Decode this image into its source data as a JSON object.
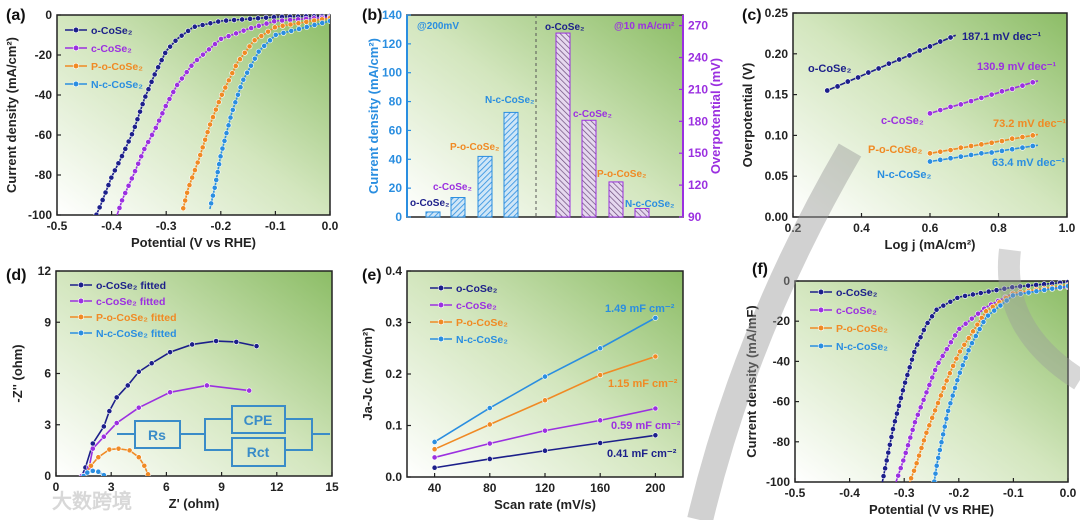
{
  "colors": {
    "o": "#1c1f8a",
    "c": "#9b30e0",
    "P": "#f08a24",
    "N": "#2a8ee0",
    "circuit": "#3a8cc8"
  },
  "watermark": "大数跨境",
  "chart_data": [
    {
      "panel": "(a)",
      "type": "line",
      "xlabel": "Potential (V vs RHE)",
      "ylabel": "Current density (mA/cm²)",
      "xlim": [
        -0.5,
        0
      ],
      "ylim": [
        -100,
        0
      ],
      "xticks": [
        -0.5,
        -0.4,
        -0.3,
        -0.2,
        -0.1,
        0
      ],
      "xtick_labels": [
        "-0.5",
        "-0.4",
        "-0.3",
        "-0.2",
        "-0.1",
        "0.0"
      ],
      "yticks": [
        -100,
        -80,
        -60,
        -40,
        -20,
        0
      ],
      "ytick_labels": [
        "-100",
        "-80",
        "-60",
        "-40",
        "-20",
        "0"
      ],
      "legend": "top-left",
      "series": [
        {
          "name": "o-CoSe₂",
          "key": "o",
          "points": [
            [
              0,
              -0.5
            ],
            [
              -0.1,
              -1
            ],
            [
              -0.2,
              -3
            ],
            [
              -0.25,
              -6
            ],
            [
              -0.28,
              -12
            ],
            [
              -0.3,
              -18
            ],
            [
              -0.32,
              -29
            ],
            [
              -0.34,
              -42
            ],
            [
              -0.36,
              -58
            ],
            [
              -0.38,
              -70
            ],
            [
              -0.4,
              -81
            ],
            [
              -0.42,
              -95
            ],
            [
              -0.428,
              -100
            ]
          ]
        },
        {
          "name": "c-CoSe₂",
          "key": "c",
          "points": [
            [
              0,
              -1
            ],
            [
              -0.1,
              -3
            ],
            [
              -0.15,
              -7
            ],
            [
              -0.2,
              -12
            ],
            [
              -0.25,
              -24
            ],
            [
              -0.28,
              -35
            ],
            [
              -0.3,
              -45
            ],
            [
              -0.32,
              -57
            ],
            [
              -0.34,
              -67
            ],
            [
              -0.36,
              -80
            ],
            [
              -0.38,
              -92
            ],
            [
              -0.39,
              -100
            ]
          ]
        },
        {
          "name": "P-o-CoSe₂",
          "key": "P",
          "points": [
            [
              0,
              -1.5
            ],
            [
              -0.1,
              -6
            ],
            [
              -0.14,
              -13
            ],
            [
              -0.17,
              -24
            ],
            [
              -0.2,
              -41
            ],
            [
              -0.22,
              -55
            ],
            [
              -0.24,
              -72
            ],
            [
              -0.26,
              -87
            ],
            [
              -0.27,
              -98
            ]
          ]
        },
        {
          "name": "N-c-CoSe₂",
          "key": "N",
          "points": [
            [
              0,
              -3
            ],
            [
              -0.1,
              -10
            ],
            [
              -0.13,
              -18
            ],
            [
              -0.16,
              -33
            ],
            [
              -0.18,
              -49
            ],
            [
              -0.2,
              -70
            ],
            [
              -0.21,
              -85
            ],
            [
              -0.22,
              -97
            ]
          ]
        }
      ]
    },
    {
      "panel": "(b)",
      "type": "bar",
      "left": {
        "annotation": "@200mV",
        "ylabel": "Current density (mA/cm²)",
        "ylim": [
          0,
          140
        ],
        "yticks": [
          0,
          20,
          40,
          60,
          80,
          100,
          120,
          140
        ],
        "ytick_labels": [
          "0",
          "20",
          "40",
          "60",
          "80",
          "100",
          "120",
          "140"
        ],
        "categories": [
          "o-CoSe₂",
          "c-CoSe₂",
          "P-o-CoSe₂",
          "N-c-CoSe₂"
        ],
        "keys": [
          "o",
          "c",
          "P",
          "N"
        ],
        "values": [
          3.5,
          13.5,
          42,
          72.5
        ]
      },
      "right": {
        "annotation": "@10 mA/cm²",
        "ylabel": "Overpotential (mV)",
        "ylim": [
          90,
          280
        ],
        "yticks": [
          90,
          120,
          150,
          180,
          210,
          240,
          270
        ],
        "ytick_labels": [
          "90",
          "120",
          "150",
          "180",
          "210",
          "240",
          "270"
        ],
        "categories": [
          "o-CoSe₂",
          "c-CoSe₂",
          "P-o-CoSe₂",
          "N-c-CoSe₂"
        ],
        "keys": [
          "o",
          "c",
          "P",
          "N"
        ],
        "values": [
          263,
          181,
          123,
          98
        ]
      }
    },
    {
      "panel": "(c)",
      "type": "scatter",
      "xlabel": "Log j (mA/cm²)",
      "ylabel": "Overpotential (V)",
      "xlim": [
        0.2,
        1.0
      ],
      "ylim": [
        0,
        0.25
      ],
      "xticks": [
        0.2,
        0.4,
        0.6,
        0.8,
        1.0
      ],
      "xtick_labels": [
        "0.2",
        "0.4",
        "0.6",
        "0.8",
        "1.0"
      ],
      "yticks": [
        0,
        0.05,
        0.1,
        0.15,
        0.2,
        0.25
      ],
      "ytick_labels": [
        "0.00",
        "0.05",
        "0.10",
        "0.15",
        "0.20",
        "0.25"
      ],
      "series": [
        {
          "name": "o-CoSe₂",
          "key": "o",
          "slope": "187.1 mV dec⁻¹",
          "x": [
            0.3,
            0.33,
            0.36,
            0.39,
            0.42,
            0.45,
            0.48,
            0.51,
            0.54,
            0.57,
            0.6,
            0.63,
            0.66
          ],
          "y": [
            0.155,
            0.16,
            0.166,
            0.171,
            0.177,
            0.182,
            0.188,
            0.193,
            0.198,
            0.204,
            0.209,
            0.215,
            0.22
          ]
        },
        {
          "name": "c-CoSe₂",
          "key": "c",
          "slope": "130.9 mV dec⁻¹",
          "x": [
            0.6,
            0.63,
            0.66,
            0.69,
            0.72,
            0.75,
            0.78,
            0.81,
            0.84,
            0.87,
            0.9
          ],
          "y": [
            0.127,
            0.131,
            0.135,
            0.138,
            0.142,
            0.146,
            0.15,
            0.154,
            0.157,
            0.161,
            0.165
          ]
        },
        {
          "name": "P-o-CoSe₂",
          "key": "P",
          "slope": "73.2 mV dec⁻¹",
          "x": [
            0.6,
            0.63,
            0.66,
            0.69,
            0.72,
            0.75,
            0.78,
            0.81,
            0.84,
            0.87,
            0.9
          ],
          "y": [
            0.078,
            0.08,
            0.082,
            0.085,
            0.087,
            0.089,
            0.091,
            0.093,
            0.096,
            0.098,
            0.1
          ]
        },
        {
          "name": "N-c-CoSe₂",
          "key": "N",
          "slope": "63.4 mV dec⁻¹",
          "x": [
            0.6,
            0.63,
            0.66,
            0.69,
            0.72,
            0.75,
            0.78,
            0.81,
            0.84,
            0.87,
            0.9
          ],
          "y": [
            0.068,
            0.07,
            0.072,
            0.074,
            0.076,
            0.078,
            0.079,
            0.081,
            0.083,
            0.085,
            0.087
          ]
        }
      ]
    },
    {
      "panel": "(d)",
      "type": "scatter",
      "xlabel": "Z' (ohm)",
      "ylabel": "-Z'' (ohm)",
      "xlim": [
        0,
        15
      ],
      "ylim": [
        0,
        12
      ],
      "xticks": [
        0,
        3,
        6,
        9,
        12,
        15
      ],
      "xtick_labels": [
        "0",
        "3",
        "6",
        "9",
        "12",
        "15"
      ],
      "yticks": [
        0,
        3,
        6,
        9,
        12
      ],
      "ytick_labels": [
        "0",
        "3",
        "6",
        "9",
        "12"
      ],
      "legend": "top-left",
      "circuit": {
        "rs": "Rs",
        "cpe": "CPE",
        "rct": "Rct"
      },
      "series": [
        {
          "name": "o-CoSe₂ fitted",
          "key": "o",
          "points": [
            [
              1.4,
              0
            ],
            [
              1.6,
              0.5
            ],
            [
              2,
              1.9
            ],
            [
              2.6,
              2.9
            ],
            [
              2.9,
              3.8
            ],
            [
              3.3,
              4.6
            ],
            [
              3.9,
              5.3
            ],
            [
              4.5,
              6.1
            ],
            [
              5.2,
              6.6
            ],
            [
              6.2,
              7.25
            ],
            [
              7.4,
              7.7
            ],
            [
              8.7,
              7.9
            ],
            [
              9.8,
              7.85
            ],
            [
              10.9,
              7.6
            ]
          ]
        },
        {
          "name": "c-CoSe₂ fitted",
          "key": "c",
          "points": [
            [
              1.4,
              0
            ],
            [
              1.8,
              0.5
            ],
            [
              2,
              1.6
            ],
            [
              2.6,
              2.3
            ],
            [
              3.3,
              3.1
            ],
            [
              4.5,
              4.0
            ],
            [
              6.2,
              4.9
            ],
            [
              8.2,
              5.3
            ],
            [
              10.5,
              5.0
            ]
          ]
        },
        {
          "name": "P-o-CoSe₂ fitted",
          "key": "P",
          "points": [
            [
              1.5,
              0
            ],
            [
              1.9,
              0.6
            ],
            [
              2.3,
              1.1
            ],
            [
              2.9,
              1.55
            ],
            [
              3.4,
              1.6
            ],
            [
              4.0,
              1.5
            ],
            [
              4.5,
              1.1
            ],
            [
              4.8,
              0.6
            ],
            [
              5.0,
              0.1
            ]
          ]
        },
        {
          "name": "N-c-CoSe₂ fitted",
          "key": "N",
          "points": [
            [
              1.5,
              0
            ],
            [
              1.7,
              0.2
            ],
            [
              2.0,
              0.3
            ],
            [
              2.3,
              0.25
            ],
            [
              2.6,
              0.05
            ]
          ]
        }
      ]
    },
    {
      "panel": "(e)",
      "type": "line",
      "xlabel": "Scan rate (mV/s)",
      "ylabel": "Ja-Jc (mA/cm²)",
      "xlim": [
        20,
        220
      ],
      "ylim": [
        0,
        0.4
      ],
      "xticks": [
        40,
        80,
        120,
        160,
        200
      ],
      "xtick_labels": [
        "40",
        "80",
        "120",
        "160",
        "200"
      ],
      "yticks": [
        0,
        0.1,
        0.2,
        0.3,
        0.4
      ],
      "ytick_labels": [
        "0.0",
        "0.1",
        "0.2",
        "0.3",
        "0.4"
      ],
      "legend": "top-left",
      "series": [
        {
          "name": "o-CoSe₂",
          "key": "o",
          "cdl": "0.41 mF cm⁻²",
          "points": [
            [
              40,
              0.018
            ],
            [
              80,
              0.035
            ],
            [
              120,
              0.051
            ],
            [
              160,
              0.066
            ],
            [
              200,
              0.081
            ]
          ]
        },
        {
          "name": "c-CoSe₂",
          "key": "c",
          "cdl": "0.59 mF cm⁻²",
          "points": [
            [
              40,
              0.038
            ],
            [
              80,
              0.065
            ],
            [
              120,
              0.09
            ],
            [
              160,
              0.11
            ],
            [
              200,
              0.133
            ]
          ]
        },
        {
          "name": "P-o-CoSe₂",
          "key": "P",
          "cdl": "1.15 mF cm⁻²",
          "points": [
            [
              40,
              0.054
            ],
            [
              80,
              0.102
            ],
            [
              120,
              0.149
            ],
            [
              160,
              0.198
            ],
            [
              200,
              0.234
            ]
          ]
        },
        {
          "name": "N-c-CoSe₂",
          "key": "N",
          "cdl": "1.49 mF cm⁻²",
          "points": [
            [
              40,
              0.068
            ],
            [
              80,
              0.134
            ],
            [
              120,
              0.195
            ],
            [
              160,
              0.25
            ],
            [
              200,
              0.309
            ]
          ]
        }
      ]
    },
    {
      "panel": "(f)",
      "type": "line",
      "xlabel": "Potential (V vs RHE)",
      "ylabel": "Current density (mA/mF)",
      "xlim": [
        -0.5,
        0
      ],
      "ylim": [
        -100,
        0
      ],
      "xticks": [
        -0.5,
        -0.4,
        -0.3,
        -0.2,
        -0.1,
        0
      ],
      "xtick_labels": [
        "-0.5",
        "-0.4",
        "-0.3",
        "-0.2",
        "-0.1",
        "0.0"
      ],
      "yticks": [
        -100,
        -80,
        -60,
        -40,
        -20,
        0
      ],
      "ytick_labels": [
        "-100",
        "-80",
        "-60",
        "-40",
        "-20",
        "0"
      ],
      "legend": "top-left",
      "series": [
        {
          "name": "o-CoSe₂",
          "key": "o",
          "points": [
            [
              0,
              -0.5
            ],
            [
              -0.1,
              -3
            ],
            [
              -0.2,
              -8
            ],
            [
              -0.24,
              -14
            ],
            [
              -0.26,
              -22
            ],
            [
              -0.28,
              -34
            ],
            [
              -0.3,
              -52
            ],
            [
              -0.32,
              -73
            ],
            [
              -0.34,
              -100
            ]
          ]
        },
        {
          "name": "c-CoSe₂",
          "key": "c",
          "points": [
            [
              0,
              -3
            ],
            [
              -0.1,
              -6
            ],
            [
              -0.15,
              -13
            ],
            [
              -0.2,
              -24
            ],
            [
              -0.24,
              -42
            ],
            [
              -0.26,
              -56
            ],
            [
              -0.28,
              -70
            ],
            [
              -0.3,
              -88
            ],
            [
              -0.315,
              -100
            ]
          ]
        },
        {
          "name": "P-o-CoSe₂",
          "key": "P",
          "points": [
            [
              0,
              -2
            ],
            [
              -0.1,
              -6
            ],
            [
              -0.15,
              -15
            ],
            [
              -0.2,
              -36
            ],
            [
              -0.22,
              -48
            ],
            [
              -0.24,
              -62
            ],
            [
              -0.26,
              -76
            ],
            [
              -0.28,
              -93
            ],
            [
              -0.29,
              -100
            ]
          ]
        },
        {
          "name": "N-c-CoSe₂",
          "key": "N",
          "points": [
            [
              0,
              -2.5
            ],
            [
              -0.1,
              -7
            ],
            [
              -0.15,
              -18
            ],
            [
              -0.18,
              -33
            ],
            [
              -0.2,
              -47
            ],
            [
              -0.22,
              -65
            ],
            [
              -0.24,
              -91
            ],
            [
              -0.245,
              -100
            ]
          ]
        }
      ]
    }
  ]
}
